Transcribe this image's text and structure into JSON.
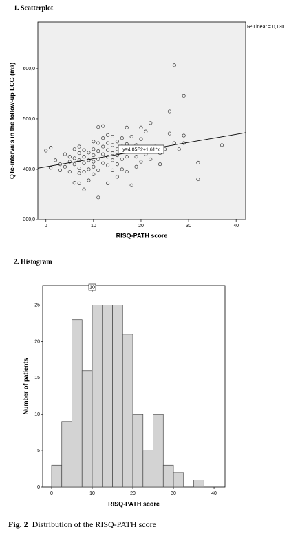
{
  "chart_data": [
    {
      "type": "scatter",
      "title": "1. Scatterplot",
      "x_label": "RISQ-PATH score",
      "y_label": "QTc-intervals in the follow-up ECG (ms)",
      "x": [
        0,
        1,
        1,
        2,
        3,
        3,
        4,
        4,
        5,
        5,
        5,
        6,
        6,
        6,
        6,
        7,
        7,
        7,
        7,
        7,
        7,
        8,
        8,
        8,
        8,
        8,
        9,
        9,
        9,
        9,
        10,
        10,
        10,
        10,
        10,
        10,
        11,
        11,
        11,
        11,
        11,
        11,
        12,
        12,
        12,
        12,
        12,
        13,
        13,
        13,
        13,
        13,
        13,
        14,
        14,
        14,
        14,
        14,
        15,
        15,
        15,
        15,
        15,
        16,
        16,
        16,
        16,
        17,
        17,
        17,
        17,
        18,
        18,
        18,
        19,
        19,
        19,
        20,
        20,
        20,
        20,
        21,
        21,
        22,
        22,
        23,
        24,
        24,
        25,
        26,
        26,
        27,
        27,
        28,
        29,
        29,
        29,
        32,
        32,
        37
      ],
      "y": [
        437,
        443,
        403,
        418,
        398,
        410,
        430,
        405,
        425,
        395,
        415,
        440,
        422,
        410,
        373,
        445,
        432,
        418,
        402,
        392,
        372,
        438,
        425,
        412,
        395,
        360,
        433,
        418,
        400,
        378,
        455,
        440,
        428,
        415,
        405,
        390,
        484,
        452,
        436,
        420,
        398,
        344,
        486,
        462,
        445,
        430,
        412,
        468,
        452,
        438,
        425,
        408,
        372,
        465,
        448,
        432,
        418,
        398,
        455,
        440,
        428,
        410,
        385,
        462,
        445,
        420,
        400,
        483,
        450,
        425,
        395,
        465,
        438,
        368,
        448,
        425,
        405,
        483,
        460,
        438,
        415,
        475,
        430,
        492,
        420,
        445,
        432,
        410,
        440,
        515,
        471,
        607,
        452,
        440,
        546,
        467,
        452,
        413,
        380,
        448
      ],
      "xlim": [
        -1.7,
        42
      ],
      "ylim": [
        300,
        693
      ],
      "xticks": [
        0,
        10,
        20,
        30,
        40
      ],
      "yticks": [
        {
          "value": 300,
          "label": "300,0"
        },
        {
          "value": 400,
          "label": "400,0"
        },
        {
          "value": 500,
          "label": "500,0"
        },
        {
          "value": 600,
          "label": "600,0"
        }
      ],
      "fit": {
        "intercept": 405,
        "slope": 1.61,
        "label": "y=4,05E2+1,61*x"
      },
      "r2": {
        "value": 0.13,
        "label": "R² Linear = 0,130"
      },
      "background": "#efefef",
      "marker_color": "#333333"
    },
    {
      "type": "histogram",
      "title": "2. Histogram",
      "x_label": "RISQ-PATH score",
      "y_label": "Number of patients",
      "bins": [
        0,
        2.5,
        5,
        7.5,
        10,
        12.5,
        15,
        17.5,
        20,
        22.5,
        25,
        27.5,
        30,
        32.5,
        35,
        37.5
      ],
      "values": [
        3,
        9,
        23,
        16,
        25,
        25,
        25,
        21,
        10,
        5,
        10,
        3,
        2,
        0,
        1
      ],
      "xlim": [
        -2.2,
        42.7
      ],
      "ylim": [
        0,
        27.7
      ],
      "xticks": [
        0,
        10,
        20,
        30,
        40
      ],
      "yticks": [
        0,
        5,
        10,
        15,
        20,
        25
      ],
      "marker": 10,
      "color": "#d3d3d3"
    }
  ],
  "caption": {
    "label": "Fig. 2",
    "text": "Distribution of the RISQ-PATH score"
  }
}
